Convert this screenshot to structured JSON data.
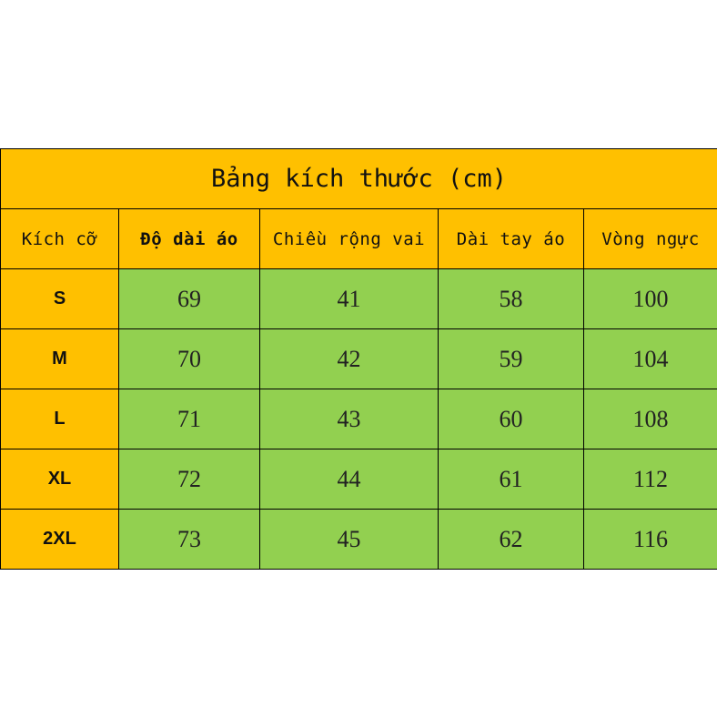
{
  "title": "Bảng kích thước (cm)",
  "headers": [
    "Kích cỡ",
    "Độ dài áo",
    "Chiều rộng vai",
    "Dài tay áo",
    "Vòng ngực"
  ],
  "rows": [
    {
      "size": "S",
      "values": [
        "69",
        "41",
        "58",
        "100"
      ]
    },
    {
      "size": "M",
      "values": [
        "70",
        "42",
        "59",
        "104"
      ]
    },
    {
      "size": "L",
      "values": [
        "71",
        "43",
        "60",
        "108"
      ]
    },
    {
      "size": "XL",
      "values": [
        "72",
        "44",
        "61",
        "112"
      ]
    },
    {
      "size": "2XL",
      "values": [
        "73",
        "45",
        "62",
        "116"
      ]
    }
  ],
  "colors": {
    "header_bg": "#FFC000",
    "cell_bg": "#92D050"
  }
}
